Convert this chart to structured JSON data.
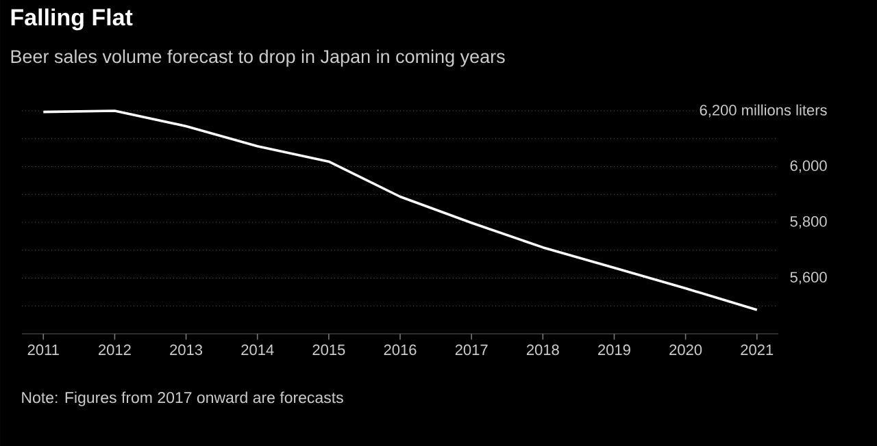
{
  "chart_data": {
    "type": "line",
    "title": "Falling Flat",
    "subtitle": "Beer sales volume forecast to drop in Japan in coming years",
    "x": [
      2011,
      2012,
      2013,
      2014,
      2015,
      2016,
      2017,
      2018,
      2019,
      2020,
      2021
    ],
    "values": [
      6196,
      6200,
      6145,
      6073,
      6018,
      5892,
      5798,
      5710,
      5637,
      5563,
      5486
    ],
    "color": "#ffffff",
    "xlim": [
      2010.7,
      2021.3
    ],
    "ylim": [
      5400,
      6200
    ],
    "xticks": [
      2011,
      2012,
      2013,
      2014,
      2015,
      2016,
      2017,
      2018,
      2019,
      2020,
      2021
    ],
    "yticks": [
      {
        "value": 5500,
        "label": null
      },
      {
        "value": 5600,
        "label": "5,600"
      },
      {
        "value": 5700,
        "label": null
      },
      {
        "value": 5800,
        "label": "5,800"
      },
      {
        "value": 5900,
        "label": null
      },
      {
        "value": 6000,
        "label": "6,000"
      },
      {
        "value": 6100,
        "label": null
      },
      {
        "value": 6200,
        "label": "6,200 millions liters"
      }
    ],
    "grid": "y",
    "line_style": "solid",
    "annotations": [
      "Note: Figures from 2017 onward are forecasts"
    ]
  }
}
